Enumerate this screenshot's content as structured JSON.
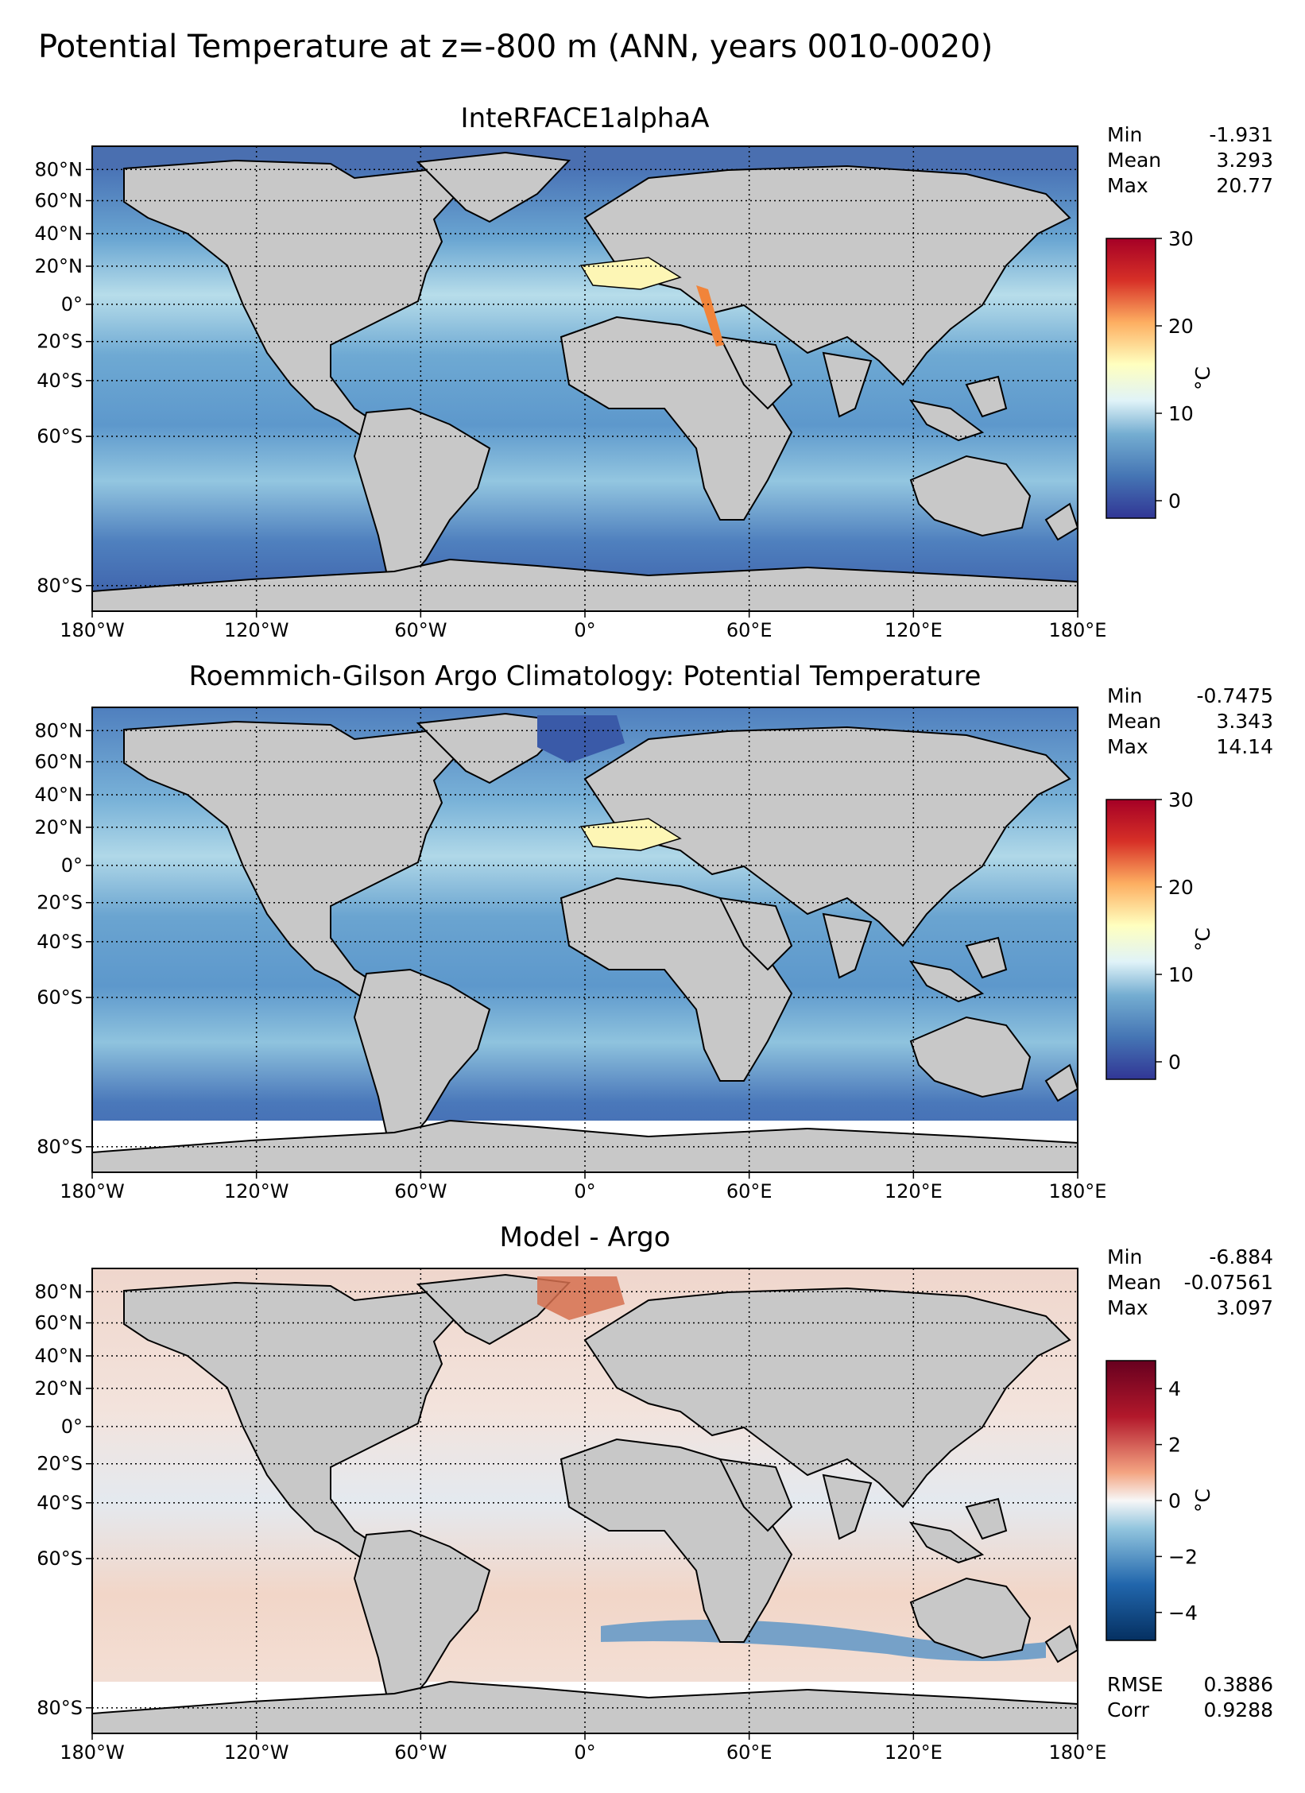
{
  "figure_title": "Potential Temperature at z=-800 m (ANN, years 0010-0020)",
  "lon_ticks": [
    "180°W",
    "120°W",
    "60°W",
    "0°",
    "60°E",
    "120°E",
    "180°E"
  ],
  "lat_ticks": [
    "80°N",
    "60°N",
    "40°N",
    "20°N",
    "0°",
    "20°S",
    "40°S",
    "60°S",
    "80°S"
  ],
  "panels": [
    {
      "title": "InteRFACE1alphaA",
      "stats": [
        {
          "label": "Min",
          "value": "-1.931"
        },
        {
          "label": "Mean",
          "value": "3.293"
        },
        {
          "label": "Max",
          "value": "20.77"
        }
      ],
      "colorbar": {
        "ticks": [
          "0",
          "10",
          "20",
          "30"
        ],
        "tick_values": [
          0,
          10,
          20,
          30
        ],
        "range": [
          -2,
          30
        ],
        "label": "°C",
        "cmap": "RdYlBu_r"
      }
    },
    {
      "title": "Roemmich-Gilson Argo Climatology: Potential Temperature",
      "stats": [
        {
          "label": "Min",
          "value": "-0.7475"
        },
        {
          "label": "Mean",
          "value": "3.343"
        },
        {
          "label": "Max",
          "value": "14.14"
        }
      ],
      "colorbar": {
        "ticks": [
          "0",
          "10",
          "20",
          "30"
        ],
        "tick_values": [
          0,
          10,
          20,
          30
        ],
        "range": [
          -2,
          30
        ],
        "label": "°C",
        "cmap": "RdYlBu_r"
      }
    },
    {
      "title": "Model - Argo",
      "stats": [
        {
          "label": "Min",
          "value": "-6.884"
        },
        {
          "label": "Mean",
          "value": "-0.07561"
        },
        {
          "label": "Max",
          "value": "3.097"
        }
      ],
      "colorbar": {
        "ticks": [
          "4",
          "2",
          "0",
          "−2",
          "−4"
        ],
        "tick_values": [
          4,
          2,
          0,
          -2,
          -4
        ],
        "range": [
          -5,
          5
        ],
        "label": "°C",
        "cmap": "RdBu_r"
      },
      "extra_stats": [
        {
          "label": "RMSE",
          "value": "0.3886"
        },
        {
          "label": "Corr",
          "value": "0.9288"
        }
      ]
    }
  ],
  "colors": {
    "land": "#c8c8c8",
    "ocean_cold": "#4575b4",
    "ocean_mid": "#8fc3dd",
    "ocean_warm": "#fee090",
    "diff_pos": "#d6604d",
    "diff_neg": "#4393c3",
    "nodata": "#ffffff"
  }
}
